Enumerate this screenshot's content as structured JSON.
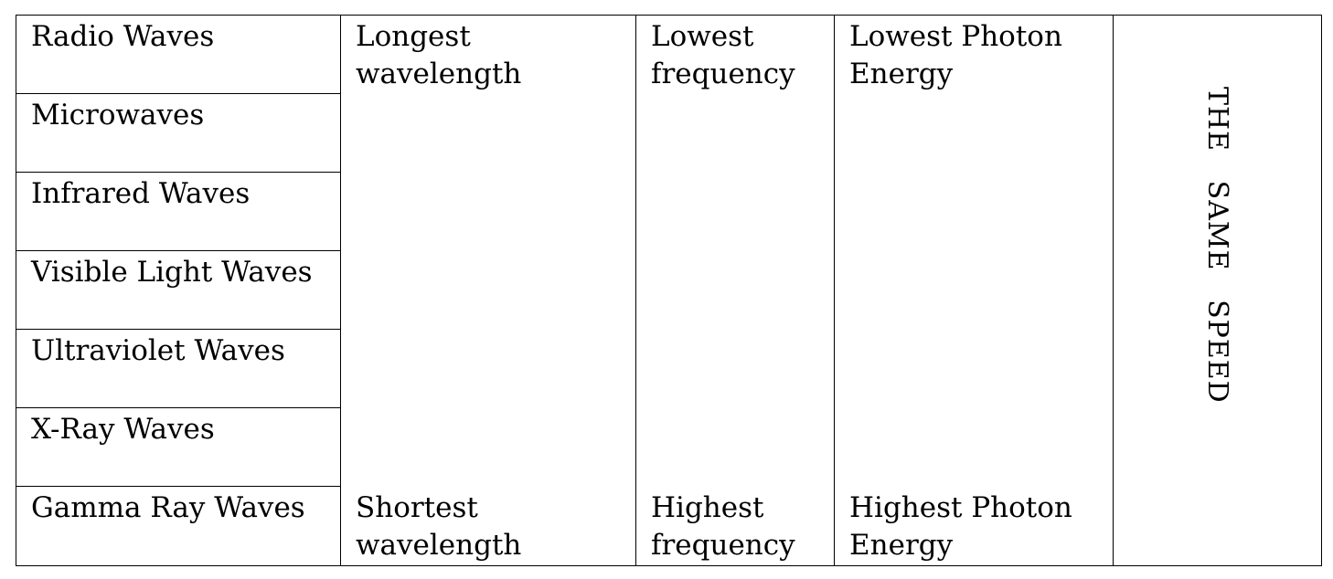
{
  "waves": [
    "Radio Waves",
    "Microwaves",
    "Infrared Waves",
    "Visible Light Waves",
    "Ultraviolet Waves",
    "X-Ray Waves",
    "Gamma Ray Waves"
  ],
  "wavelength": {
    "top": "Longest wavelength",
    "bottom": "Shortest wavelength"
  },
  "frequency": {
    "top": "Lowest frequency",
    "bottom": "Highest frequency"
  },
  "photon_energy": {
    "top": "Lowest  Photon Energy",
    "bottom": "Highest Photon Energy"
  },
  "speed_label": "THE   SAME   SPEED"
}
